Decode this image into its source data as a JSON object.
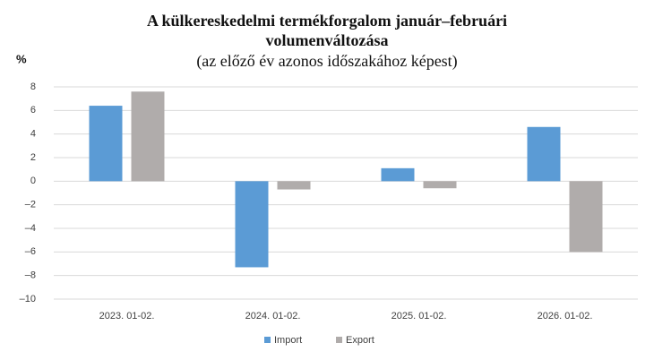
{
  "chart_data": {
    "type": "bar",
    "title": "A külkereskedelmi termékforgalom január–februári volumenváltozása",
    "subtitle": "(az előző év azonos időszakához képest)",
    "y_label": "%",
    "categories": [
      "2023. 01-02.",
      "2024. 01-02.",
      "2025. 01-02.",
      "2026. 01-02."
    ],
    "series": [
      {
        "name": "Import",
        "color": "#5b9bd5",
        "values": [
          6.4,
          -7.3,
          1.1,
          4.6
        ]
      },
      {
        "name": "Export",
        "color": "#b0acab",
        "values": [
          7.6,
          -0.7,
          -0.6,
          -6.0
        ]
      }
    ],
    "ylim": [
      -10,
      8
    ],
    "yticks": [
      {
        "value": -10,
        "label": "–10"
      },
      {
        "value": -8,
        "label": "–8"
      },
      {
        "value": -6,
        "label": "–6"
      },
      {
        "value": -4,
        "label": "–4"
      },
      {
        "value": -2,
        "label": "–2"
      },
      0,
      2,
      4,
      6,
      8
    ],
    "grid": true,
    "legend": "bottom"
  }
}
